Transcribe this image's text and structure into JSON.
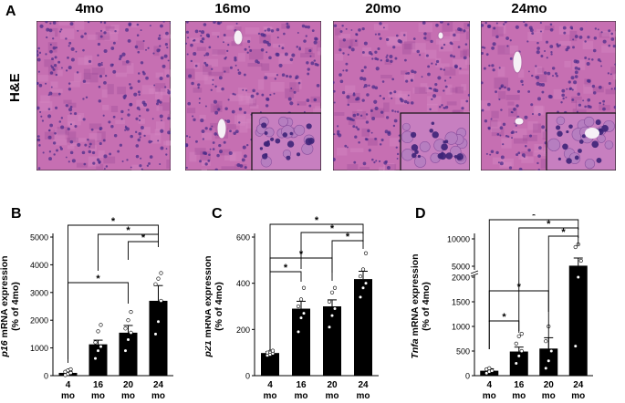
{
  "panel_a": {
    "letter": "A",
    "row_label": "H&E",
    "ages": [
      "4mo",
      "16mo",
      "20mo",
      "24mo"
    ]
  },
  "colors": {
    "tissue_base": "#c66fb2",
    "tissue_dark": "#9c4a98",
    "nucleus": "#4b2c8a",
    "bar": "#000000"
  },
  "chart_data": [
    {
      "panel": "B",
      "type": "bar",
      "ylabel_italic": "p16",
      "ylabel_rest": " mRNA expression",
      "ylabel2": "(% of 4mo)",
      "categories": [
        "4",
        "16",
        "20",
        "24"
      ],
      "category_unit": "mo",
      "values": [
        100,
        1130,
        1550,
        2700
      ],
      "errors": [
        60,
        150,
        260,
        550
      ],
      "ylim": [
        0,
        5000
      ],
      "yticks": [
        0,
        1000,
        2000,
        3000,
        4000,
        5000
      ],
      "points": [
        [
          20,
          60,
          100,
          140,
          190,
          230
        ],
        [
          620,
          900,
          1050,
          1200,
          1600,
          1830
        ],
        [
          900,
          1300,
          1550,
          1700,
          2000,
          2300
        ],
        [
          1500,
          1950,
          2700,
          3300,
          3500,
          3700
        ]
      ],
      "sig": [
        [
          0,
          3,
          "*"
        ],
        [
          1,
          3,
          "*"
        ],
        [
          2,
          3,
          "*"
        ],
        [
          0,
          2,
          "*"
        ]
      ]
    },
    {
      "panel": "C",
      "type": "bar",
      "ylabel_italic": "p21",
      "ylabel_rest": " mRNA expression",
      "ylabel2": "(% of 4mo)",
      "categories": [
        "4",
        "16",
        "20",
        "24"
      ],
      "category_unit": "mo",
      "values": [
        98,
        290,
        300,
        418
      ],
      "errors": [
        6,
        32,
        28,
        34
      ],
      "ylim": [
        0,
        600
      ],
      "yticks": [
        0,
        200,
        400,
        600
      ],
      "points": [
        [
          88,
          92,
          96,
          100,
          104,
          108
        ],
        [
          190,
          250,
          270,
          300,
          330,
          380
        ],
        [
          210,
          260,
          290,
          320,
          360,
          380
        ],
        [
          340,
          380,
          400,
          430,
          460,
          530
        ]
      ],
      "sig": [
        [
          0,
          3,
          "*"
        ],
        [
          1,
          3,
          "*"
        ],
        [
          2,
          3,
          "*"
        ],
        [
          0,
          2,
          "*"
        ],
        [
          0,
          1,
          "*"
        ]
      ]
    },
    {
      "panel": "D",
      "type": "bar",
      "ylabel_italic": "Tnfa",
      "ylabel_rest": " mRNA expression",
      "ylabel2": "(% of 4mo)",
      "categories": [
        "4",
        "16",
        "20",
        "24"
      ],
      "category_unit": "mo",
      "values": [
        100,
        490,
        550,
        5100
      ],
      "errors": [
        40,
        90,
        220,
        1400
      ],
      "yscale": "broken",
      "yticks": [
        0,
        500,
        1000,
        1500,
        2000,
        5000,
        10000
      ],
      "points": [
        [
          50,
          80,
          100,
          130,
          150
        ],
        [
          250,
          400,
          500,
          650,
          800,
          850
        ],
        [
          150,
          300,
          500,
          700,
          1000
        ],
        [
          600,
          2000,
          6000,
          8500,
          9000
        ]
      ],
      "sig": [
        [
          0,
          3,
          "*"
        ],
        [
          1,
          3,
          "*"
        ],
        [
          2,
          3,
          "*"
        ],
        [
          0,
          2,
          "*"
        ],
        [
          0,
          1,
          "*"
        ]
      ]
    }
  ]
}
